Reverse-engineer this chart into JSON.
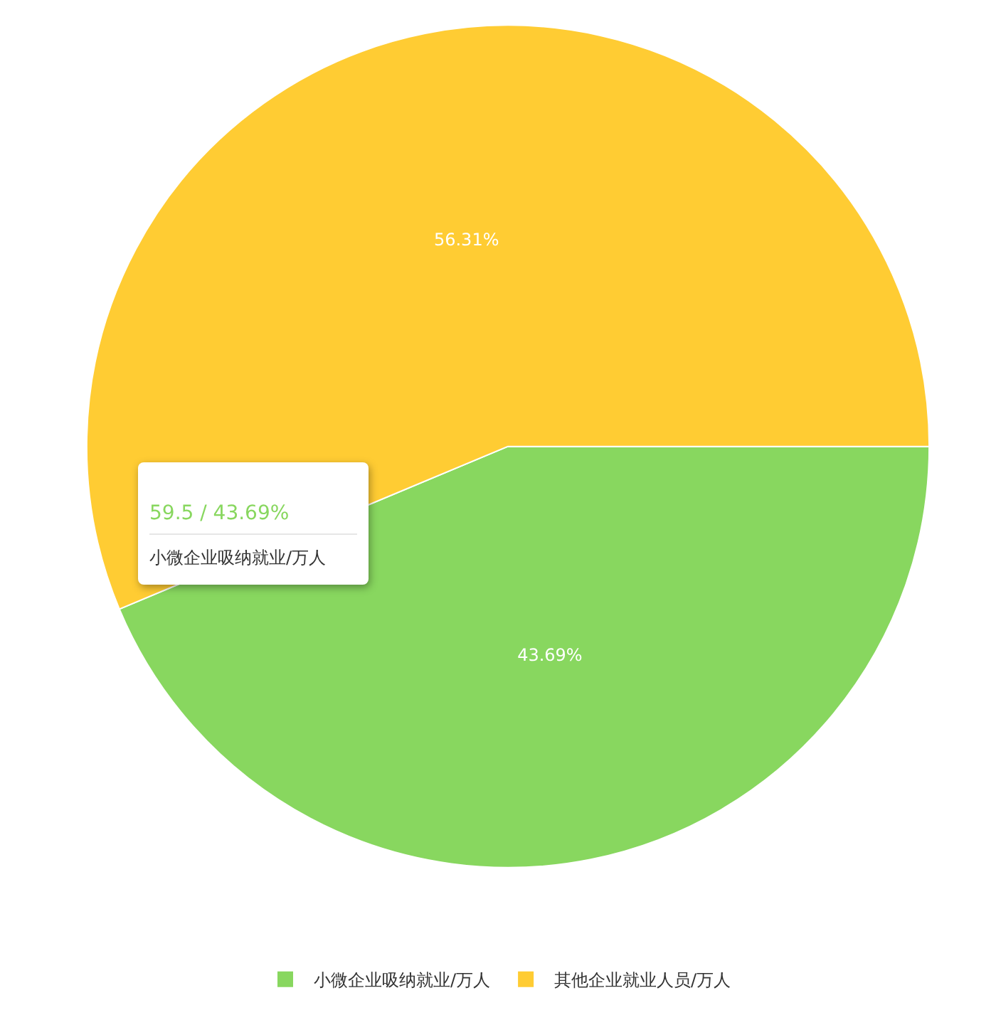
{
  "chart_data": {
    "type": "pie",
    "categories": [
      "小微企业吸纳就业/万人",
      "其他企业就业人员/万人"
    ],
    "values": [
      43.69,
      56.31
    ],
    "colors": [
      "#88d75f",
      "#ffcc33"
    ],
    "value_labels": [
      "43.69%",
      "56.31%"
    ],
    "annotations": [
      "59.5 / 43.69%",
      "小微企业吸纳就业/万人"
    ],
    "legend": "bottom"
  }
}
